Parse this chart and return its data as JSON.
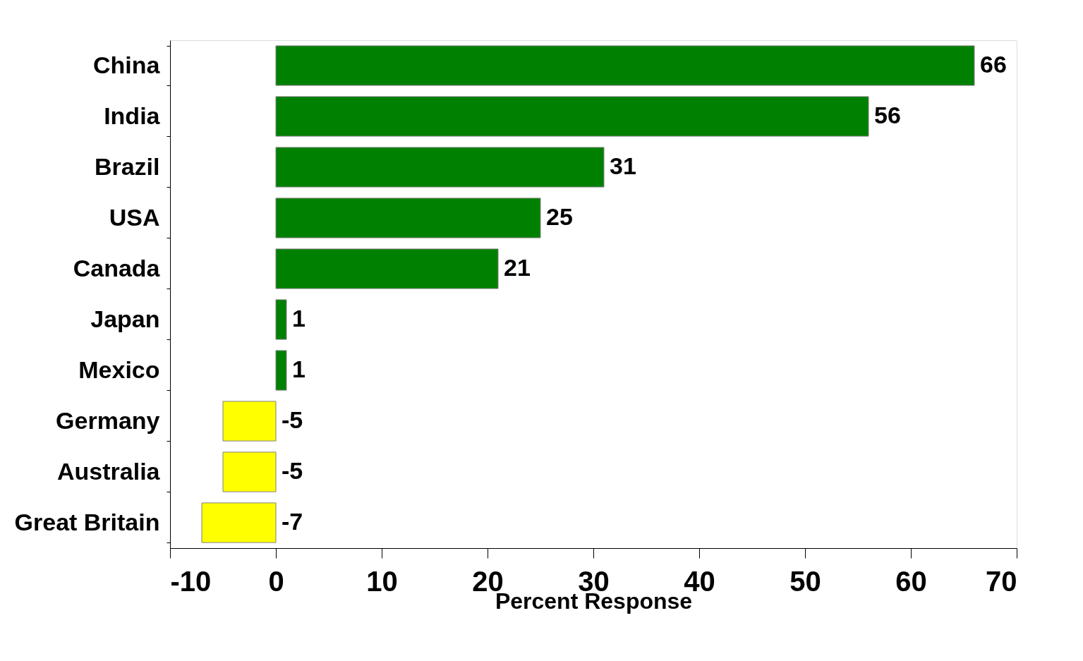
{
  "chart_data": {
    "type": "bar",
    "orientation": "horizontal",
    "xlabel": "Percent Response",
    "categories": [
      "China",
      "India",
      "Brazil",
      "USA",
      "Canada",
      "Japan",
      "Mexico",
      "Germany",
      "Australia",
      "Great Britain"
    ],
    "values": [
      66,
      56,
      31,
      25,
      21,
      1,
      1,
      -5,
      -5,
      -7
    ],
    "colors": [
      "#008000",
      "#008000",
      "#008000",
      "#008000",
      "#008000",
      "#008000",
      "#008000",
      "#ffff00",
      "#ffff00",
      "#ffff00"
    ],
    "xlim": [
      -10,
      70
    ],
    "xticks": [
      -10,
      0,
      10,
      20,
      30,
      40,
      50,
      60,
      70
    ],
    "data_labels": true,
    "grid": false
  }
}
